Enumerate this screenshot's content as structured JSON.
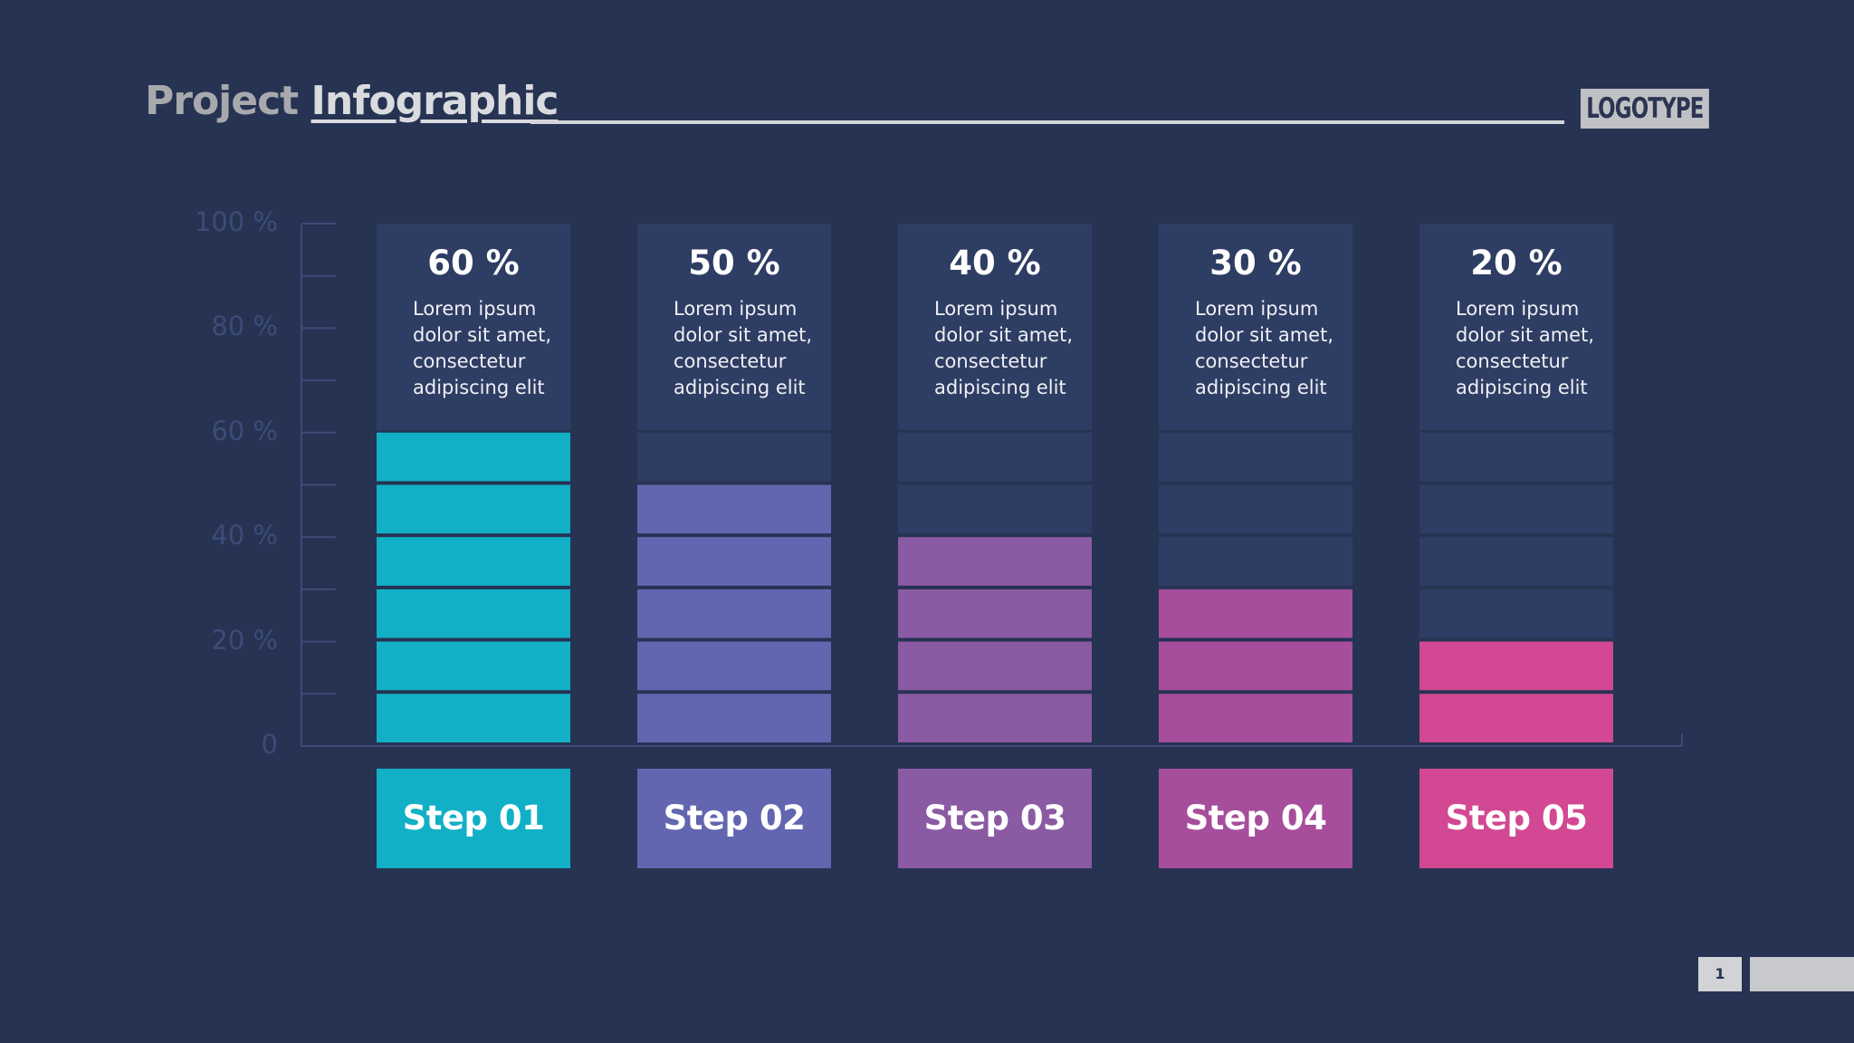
{
  "title": {
    "part1": "Project",
    "part2": "Infographic"
  },
  "logo": "LOGOTYPE",
  "page_number": "1",
  "colors": {
    "background": "#263352",
    "card": "#2e3d63",
    "axis": "#3d4b78",
    "empty_segment": "#2e3d63",
    "steps": [
      "#12b0c6",
      "#6266b0",
      "#8a5aa3",
      "#a64e9c",
      "#d24892"
    ]
  },
  "chart_data": {
    "type": "bar",
    "categories": [
      "Step 01",
      "Step 02",
      "Step 03",
      "Step 04",
      "Step 05"
    ],
    "values": [
      60,
      50,
      40,
      30,
      20
    ],
    "value_labels": [
      "60 %",
      "50 %",
      "40 %",
      "30 %",
      "20 %"
    ],
    "descriptions": [
      "Lorem ipsum dolor sit amet, consectetur adipiscing elit",
      "Lorem ipsum dolor sit amet, consectetur adipiscing elit",
      "Lorem ipsum dolor sit amet, consectetur adipiscing elit",
      "Lorem ipsum dolor sit amet, consectetur adipiscing elit",
      "Lorem ipsum dolor sit amet, consectetur adipiscing elit"
    ],
    "ylim": [
      0,
      100
    ],
    "y_tick_labels": [
      "0",
      "20 %",
      "40 %",
      "60 %",
      "80 %",
      "100 %"
    ],
    "y_tick_values": [
      0,
      20,
      40,
      60,
      80,
      100
    ],
    "segments_shown": 6,
    "segment_step": 10,
    "grid": false
  }
}
